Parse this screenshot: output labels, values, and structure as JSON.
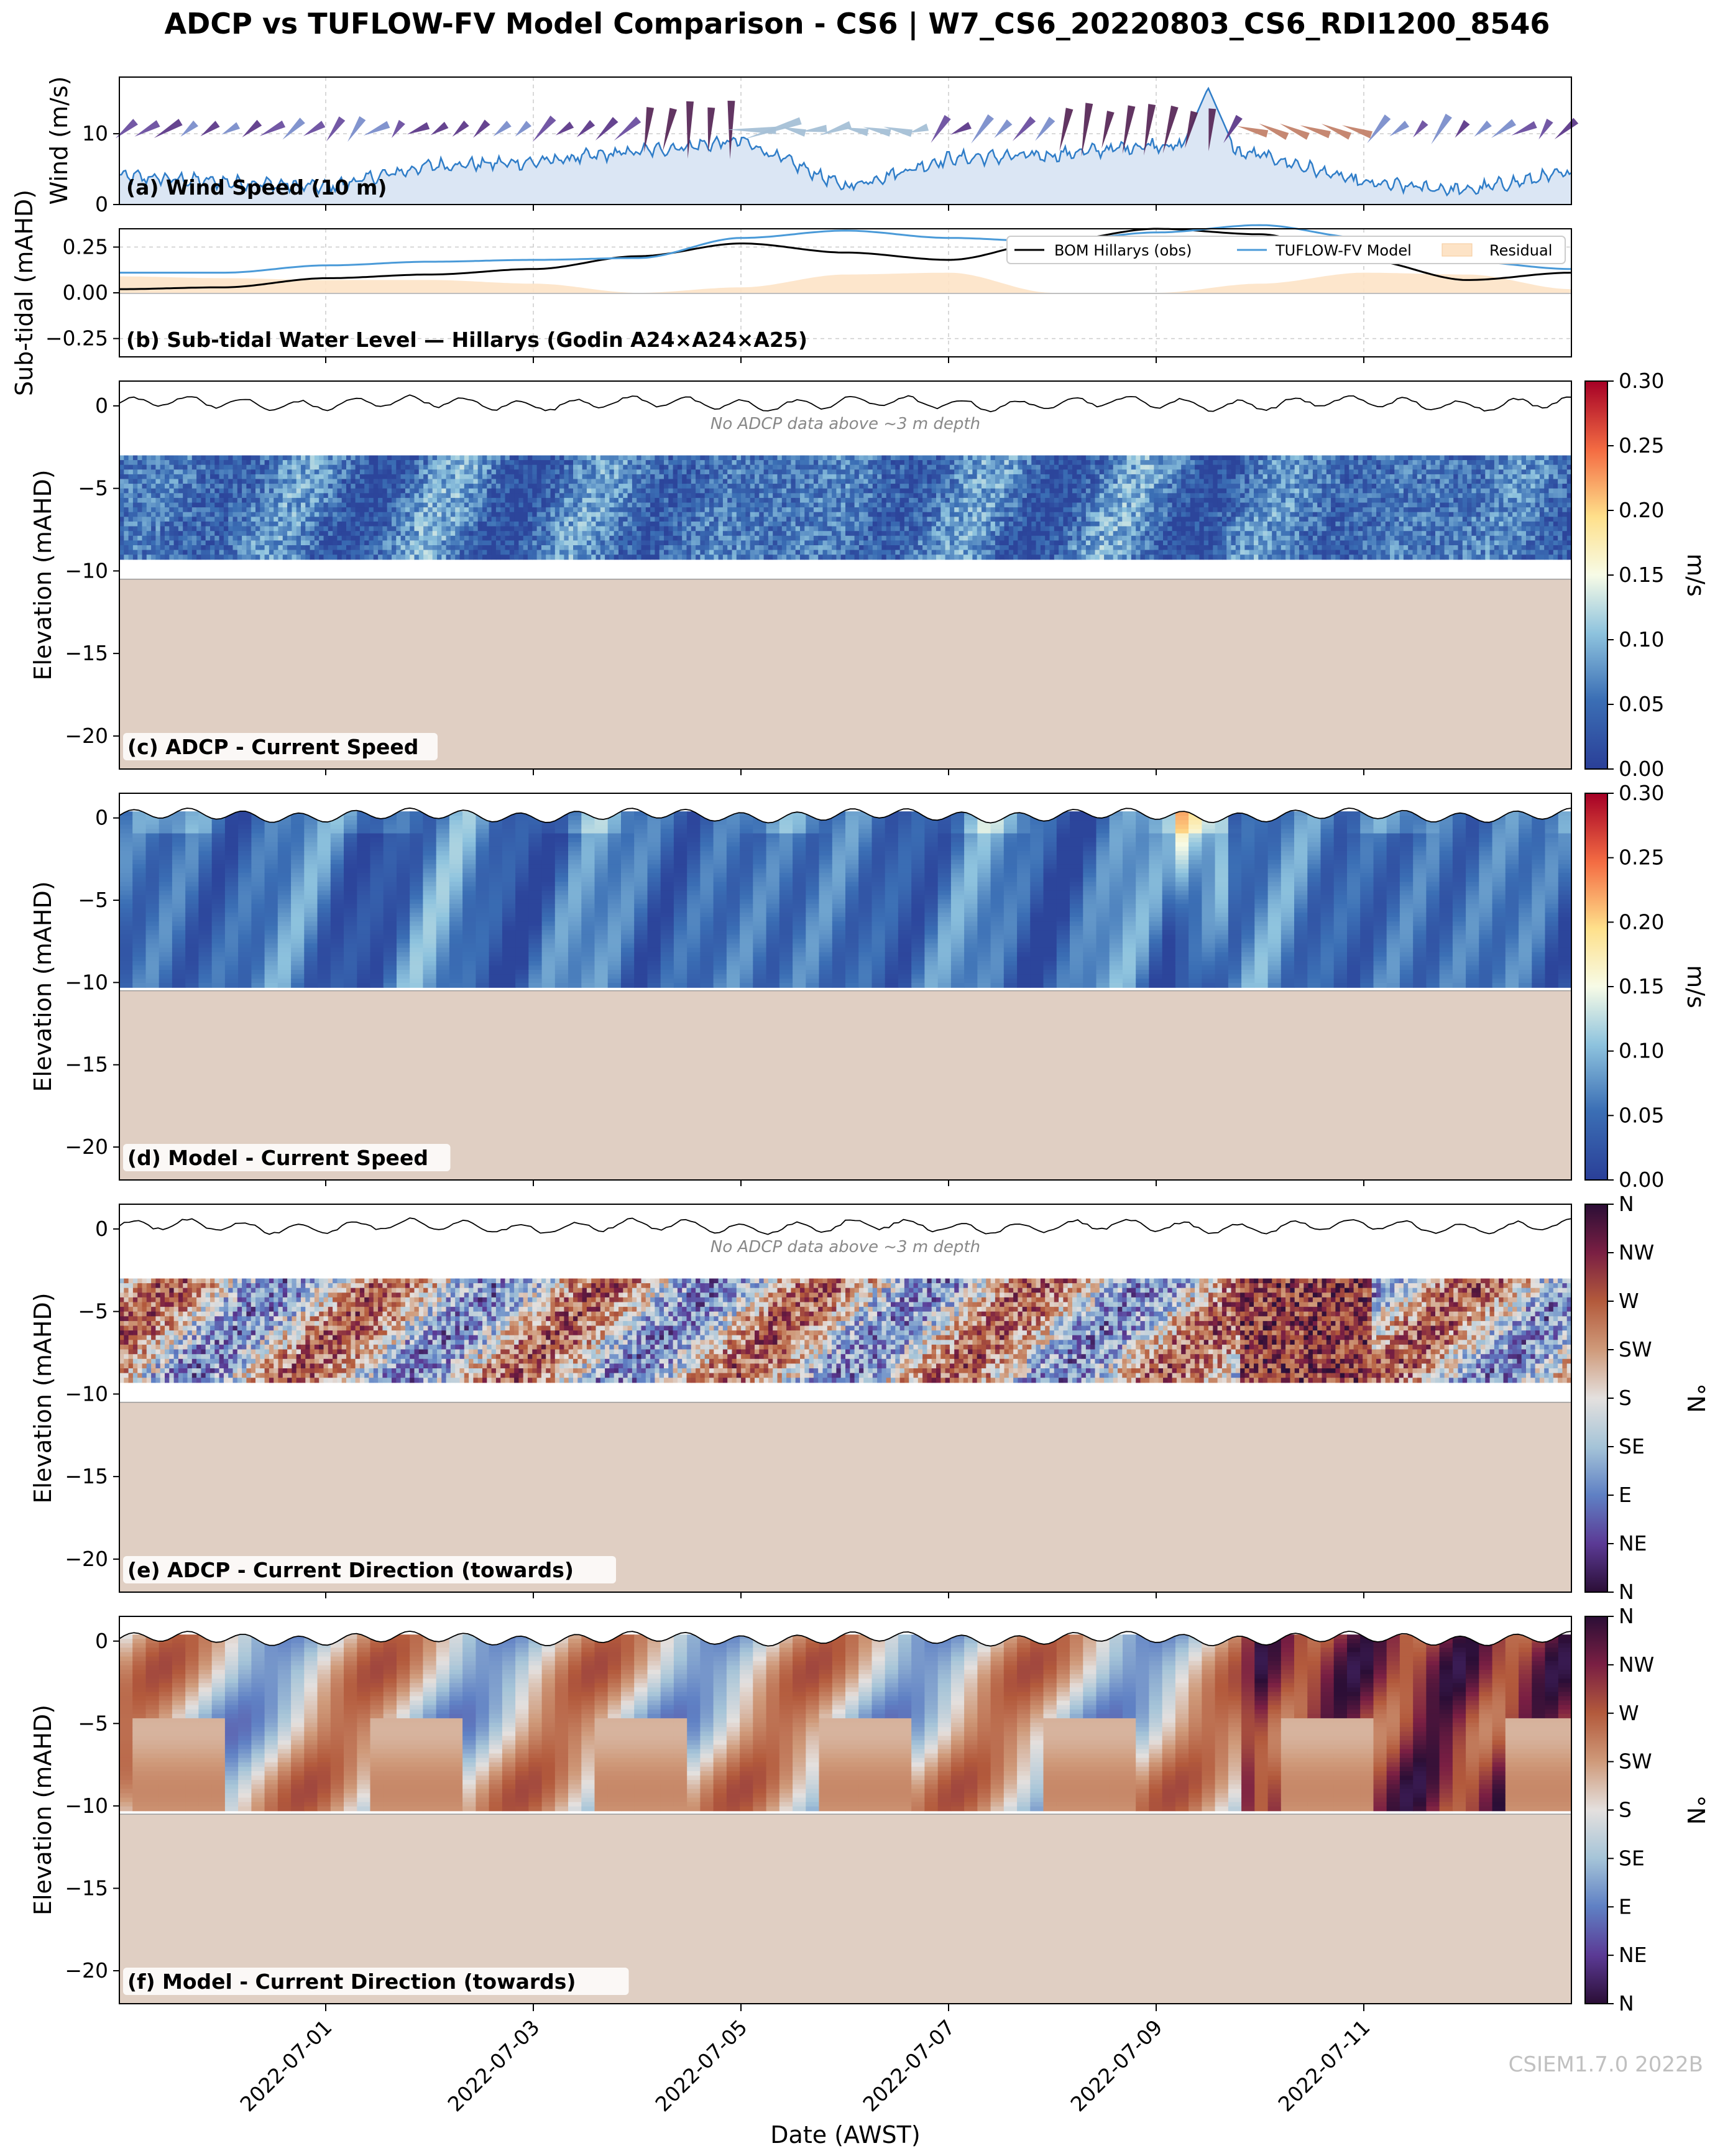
{
  "figure": {
    "title": "ADCP vs TUFLOW-FV Model Comparison - CS6 | W7_CS6_20220803_CS6_RDI1200_8546",
    "xlabel": "Date (AWST)",
    "watermark": "CSIEM1.7.0 2022B",
    "no_data_note": "No ADCP data above ~3 m depth",
    "date_ticks": [
      "2022-07-01",
      "2022-07-03",
      "2022-07-05",
      "2022-07-07",
      "2022-07-09",
      "2022-07-11"
    ],
    "colors": {
      "bed": "#e0cfc3",
      "wind_fill": "#dbe6f4",
      "wind_line": "#2f7dc8",
      "obs_line": "#000000",
      "model_line": "#4a9ad8",
      "residual": "#fde3c6"
    }
  },
  "panels": {
    "a": {
      "label": "(a) Wind Speed (10 m)",
      "ylabel": "Wind (m/s)",
      "yticks": [
        "0",
        "10"
      ]
    },
    "b": {
      "label": "(b) Sub-tidal Water Level — Hillarys (Godin A24×A24×A25)",
      "ylabel": "Sub-tidal (mAHD)",
      "yticks": [
        "0.25",
        "0.00",
        "−0.25"
      ]
    },
    "c": {
      "label": "(c) ADCP - Current Speed",
      "ylabel": "Elevation (mAHD)"
    },
    "d": {
      "label": "(d) Model - Current Speed",
      "ylabel": "Elevation (mAHD)"
    },
    "e": {
      "label": "(e) ADCP - Current Direction (towards)",
      "ylabel": "Elevation (mAHD)"
    },
    "f": {
      "label": "(f) Model - Current Direction (towards)",
      "ylabel": "Elevation (mAHD)"
    }
  },
  "elev_ticks": [
    "0",
    "−5",
    "−10",
    "−15",
    "−20"
  ],
  "legend": {
    "obs": "BOM Hillarys (obs)",
    "model": "TUFLOW-FV Model",
    "residual": "Residual"
  },
  "colorbars": {
    "speed": {
      "label": "m/s",
      "ticks": [
        "0.30",
        "0.25",
        "0.20",
        "0.15",
        "0.10",
        "0.05",
        "0.00"
      ]
    },
    "direction": {
      "label": "°N",
      "ticks": [
        "N",
        "NW",
        "W",
        "SW",
        "S",
        "SE",
        "E",
        "NE",
        "N"
      ]
    }
  },
  "chart_data": [
    {
      "type": "area",
      "panel": "a",
      "title": "(a) Wind Speed (10 m)",
      "ylabel": "Wind (m/s)",
      "x_range": [
        "2022-06-29",
        "2022-07-13"
      ],
      "ylim": [
        0,
        18
      ],
      "x": [
        "2022-06-29",
        "2022-06-30",
        "2022-07-01",
        "2022-07-02",
        "2022-07-03",
        "2022-07-04",
        "2022-07-05",
        "2022-07-06",
        "2022-07-07",
        "2022-07-08",
        "2022-07-09",
        "2022-07-10",
        "2022-07-11",
        "2022-07-12",
        "2022-07-13"
      ],
      "values": [
        4.0,
        3.2,
        2.5,
        5.5,
        6.0,
        7.5,
        9.0,
        2.5,
        6.5,
        7.0,
        8.5,
        7.0,
        3.0,
        2.0,
        4.5
      ],
      "peak": {
        "x": "2022-07-09T12",
        "value": 16.5
      }
    },
    {
      "type": "line",
      "panel": "b",
      "title": "(b) Sub-tidal Water Level — Hillarys (Godin A24×A24×A25)",
      "ylabel": "Sub-tidal (mAHD)",
      "ylim": [
        -0.35,
        0.35
      ],
      "x": [
        "2022-06-29",
        "2022-06-30",
        "2022-07-01",
        "2022-07-02",
        "2022-07-03",
        "2022-07-04",
        "2022-07-05",
        "2022-07-06",
        "2022-07-07",
        "2022-07-08",
        "2022-07-09",
        "2022-07-10",
        "2022-07-11",
        "2022-07-12",
        "2022-07-13"
      ],
      "series": [
        {
          "name": "BOM Hillarys (obs)",
          "values": [
            0.02,
            0.03,
            0.08,
            0.1,
            0.13,
            0.2,
            0.27,
            0.22,
            0.18,
            0.28,
            0.35,
            0.32,
            0.18,
            0.07,
            0.11
          ]
        },
        {
          "name": "TUFLOW-FV Model",
          "values": [
            0.11,
            0.11,
            0.15,
            0.17,
            0.18,
            0.19,
            0.3,
            0.34,
            0.3,
            0.28,
            0.33,
            0.37,
            0.3,
            0.17,
            0.13
          ]
        },
        {
          "name": "Residual",
          "values": [
            0.09,
            0.08,
            0.07,
            0.07,
            0.05,
            0.0,
            0.03,
            0.1,
            0.11,
            0.0,
            0.0,
            0.05,
            0.11,
            0.1,
            0.02
          ]
        }
      ]
    },
    {
      "type": "heatmap",
      "panel": "c",
      "title": "(c) ADCP - Current Speed",
      "ylabel": "Elevation (mAHD)",
      "ylim": [
        -22,
        1.5
      ],
      "data_depth_range": [
        -9.3,
        -3.0
      ],
      "bed_level": -10.5,
      "colorbar": {
        "label": "m/s",
        "range": [
          0,
          0.3
        ]
      }
    },
    {
      "type": "heatmap",
      "panel": "d",
      "title": "(d) Model - Current Speed",
      "ylabel": "Elevation (mAHD)",
      "ylim": [
        -22,
        1.5
      ],
      "data_depth_range": [
        -10.3,
        0.4
      ],
      "bed_level": -10.5,
      "colorbar": {
        "label": "m/s",
        "range": [
          0,
          0.3
        ]
      }
    },
    {
      "type": "heatmap",
      "panel": "e",
      "title": "(e) ADCP - Current Direction (towards)",
      "ylabel": "Elevation (mAHD)",
      "ylim": [
        -22,
        1.5
      ],
      "data_depth_range": [
        -9.3,
        -3.0
      ],
      "bed_level": -10.5,
      "colorbar": {
        "label": "°N",
        "range": [
          0,
          360
        ]
      }
    },
    {
      "type": "heatmap",
      "panel": "f",
      "title": "(f) Model - Current Direction (towards)",
      "ylabel": "Elevation (mAHD)",
      "ylim": [
        -22,
        1.5
      ],
      "data_depth_range": [
        -10.3,
        0.4
      ],
      "bed_level": -10.5,
      "colorbar": {
        "label": "°N",
        "range": [
          0,
          360
        ]
      }
    }
  ]
}
